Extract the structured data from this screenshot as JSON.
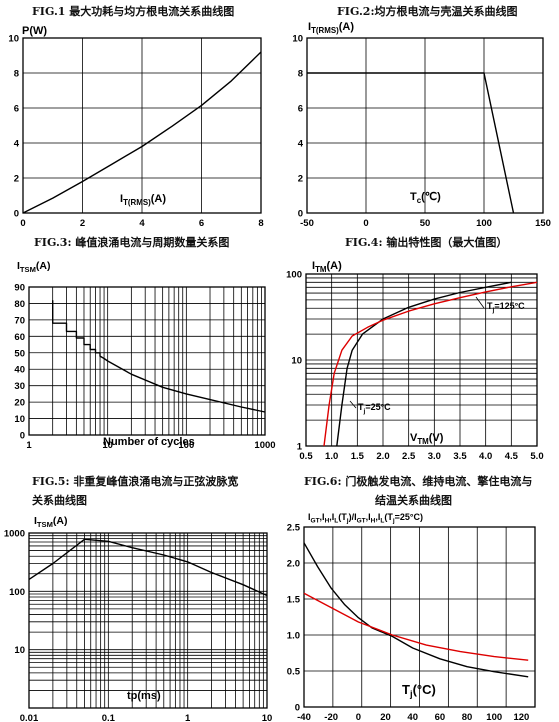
{
  "chart_data": [
    {
      "id": "fig1",
      "type": "line",
      "title": "FIG.1  最大功耗与均方根电流关系曲线图",
      "ylabel": "P(W)",
      "xlabel": "I_T(RMS)(A)",
      "xlabel_main": "I",
      "xlabel_sub": "T(RMS)",
      "xlabel_tail": "(A)",
      "xlim": [
        0,
        8
      ],
      "ylim": [
        0,
        10
      ],
      "xticks": [
        "0",
        "2",
        "4",
        "6",
        "8"
      ],
      "yticks": [
        "0",
        "2",
        "4",
        "6",
        "8",
        "10"
      ],
      "grid": true,
      "series": [
        {
          "color": "#000000",
          "x": [
            0,
            1,
            2,
            3,
            4,
            5,
            6,
            7,
            8
          ],
          "y": [
            0,
            0.85,
            1.8,
            2.8,
            3.8,
            4.95,
            6.15,
            7.55,
            9.2
          ]
        }
      ]
    },
    {
      "id": "fig2",
      "type": "line",
      "title": "FIG.2:均方根电流与壳温关系曲线图",
      "ylabel": "I_T(RMS)(A)",
      "ylabel_main": "I",
      "ylabel_sub": "T(RMS)",
      "ylabel_tail": "(A)",
      "xlabel": "Tc(℃)",
      "xlabel_main": "T",
      "xlabel_sub": "c",
      "xlabel_tail": "(℃)",
      "xlim": [
        -50,
        150
      ],
      "ylim": [
        0,
        10
      ],
      "xticks": [
        "-50",
        "0",
        "50",
        "100",
        "150"
      ],
      "yticks": [
        "0",
        "2",
        "4",
        "6",
        "8",
        "10"
      ],
      "grid": true,
      "series": [
        {
          "color": "#000000",
          "x": [
            -50,
            100,
            125
          ],
          "y": [
            8,
            8,
            0
          ]
        }
      ]
    },
    {
      "id": "fig3",
      "type": "line",
      "title": "FIG.3:  峰值浪涌电流与周期数量关系图",
      "ylabel": "I_TSM(A)",
      "ylabel_main": "I",
      "ylabel_sub": "TSM",
      "ylabel_tail": "(A)",
      "xlabel": "Number of cycles",
      "xscale": "log",
      "xlim": [
        1,
        1000
      ],
      "ylim": [
        0,
        90
      ],
      "xticks": [
        "1",
        "10",
        "100",
        "1000"
      ],
      "yticks": [
        "0",
        "10",
        "20",
        "30",
        "40",
        "50",
        "60",
        "70",
        "80",
        "90"
      ],
      "grid": true,
      "series": [
        {
          "color": "#000000",
          "x": [
            2,
            2,
            3,
            3,
            4,
            4,
            5,
            5,
            6,
            6,
            7,
            7,
            8,
            8,
            9,
            10,
            20,
            50,
            100,
            200,
            500,
            1000
          ],
          "y": [
            82,
            68,
            68,
            63,
            63,
            59,
            59,
            55,
            55,
            52,
            52,
            50,
            50,
            48,
            46.5,
            45,
            37,
            29,
            25,
            21.5,
            17,
            14
          ]
        }
      ]
    },
    {
      "id": "fig4",
      "type": "line",
      "title": "FIG.4:  输出特性图（最大值图）",
      "ylabel": "I_TM(A)",
      "ylabel_main": "I",
      "ylabel_sub": "TM",
      "ylabel_tail": "(A)",
      "xlabel": "V_TM(V)",
      "xlabel_main": "V",
      "xlabel_sub": "TM",
      "xlabel_tail": "(V)",
      "yscale": "log",
      "xlim": [
        0.5,
        5.0
      ],
      "ylim": [
        1,
        100
      ],
      "xticks": [
        "0.5",
        "1.0",
        "1.5",
        "2.0",
        "2.5",
        "3.0",
        "3.5",
        "4.0",
        "4.5",
        "5.0"
      ],
      "yticks": [
        "1",
        "10",
        "100"
      ],
      "grid": true,
      "annotations": [
        {
          "main": "T",
          "sub": "j",
          "tail": "=125°C"
        },
        {
          "main": "T",
          "sub": "j",
          "tail": "=25°C"
        }
      ],
      "series": [
        {
          "name": "Tj=25°C",
          "color": "#000000",
          "x": [
            1.1,
            1.2,
            1.3,
            1.4,
            1.6,
            2.0,
            2.5,
            3.0,
            3.5,
            4.0,
            4.5
          ],
          "y": [
            1,
            3,
            8,
            13,
            20,
            30,
            41,
            51,
            61,
            70,
            80
          ]
        },
        {
          "name": "Tj=125°C",
          "color": "#dd0000",
          "x": [
            0.85,
            0.95,
            1.05,
            1.2,
            1.4,
            1.7,
            2.0,
            2.5,
            3.0,
            3.5,
            4.0,
            4.5,
            5.0
          ],
          "y": [
            1,
            3,
            7,
            13,
            19,
            24,
            29,
            37,
            45,
            53,
            62,
            71,
            80
          ]
        }
      ]
    },
    {
      "id": "fig5",
      "type": "line",
      "title": "FIG.5:  非重复峰值浪涌电流与正弦波脉宽",
      "title2": "关系曲线图",
      "ylabel": "I_TSM(A)",
      "ylabel_main": "I",
      "ylabel_sub": "TSM",
      "ylabel_tail": "(A)",
      "xlabel": "tp(ms)",
      "xscale": "log",
      "yscale": "log",
      "xlim": [
        0.01,
        10
      ],
      "ylim": [
        1,
        1000
      ],
      "xticks": [
        "0.01",
        "0.1",
        "1",
        "10"
      ],
      "yticks": [
        "1000",
        "100",
        "10"
      ],
      "grid": true,
      "series": [
        {
          "color": "#000000",
          "x": [
            0.01,
            0.02,
            0.05,
            0.1,
            0.2,
            0.5,
            1,
            2,
            5,
            10
          ],
          "y": [
            160,
            300,
            780,
            720,
            560,
            420,
            320,
            210,
            130,
            85
          ]
        }
      ]
    },
    {
      "id": "fig6",
      "type": "line",
      "title": "FIG.6:  门极触发电流、维持电流、擎住电流与",
      "title2": "结温关系曲线图",
      "ylabel": "IGT,IH,IL(Tj)/IGT,IH,IL(Tj=25°C)",
      "ylabel_text": "I_GT,I_H,I_L(T_j)/I_GT,I_H,I_L(T_j=25°C)",
      "xlabel": "Tj(°C)",
      "xlabel_main": "T",
      "xlabel_sub": "j",
      "xlabel_tail": "(°C)",
      "xlim": [
        -40,
        130
      ],
      "ylim": [
        0,
        2.5
      ],
      "xticks": [
        "-40",
        "-20",
        "0",
        "20",
        "40",
        "60",
        "80",
        "100",
        "120"
      ],
      "yticks": [
        "0",
        "0.5",
        "1.0",
        "1.5",
        "2.0",
        "2.5"
      ],
      "grid": true,
      "series": [
        {
          "color": "#000000",
          "x": [
            -40,
            -30,
            -20,
            -10,
            0,
            10,
            25,
            40,
            60,
            80,
            100,
            125
          ],
          "y": [
            2.28,
            1.95,
            1.65,
            1.42,
            1.24,
            1.1,
            0.98,
            0.82,
            0.67,
            0.56,
            0.49,
            0.42
          ]
        },
        {
          "color": "#dd0000",
          "x": [
            -40,
            -20,
            0,
            25,
            50,
            75,
            100,
            125
          ],
          "y": [
            1.58,
            1.38,
            1.18,
            1.0,
            0.86,
            0.77,
            0.7,
            0.65
          ]
        }
      ]
    }
  ]
}
